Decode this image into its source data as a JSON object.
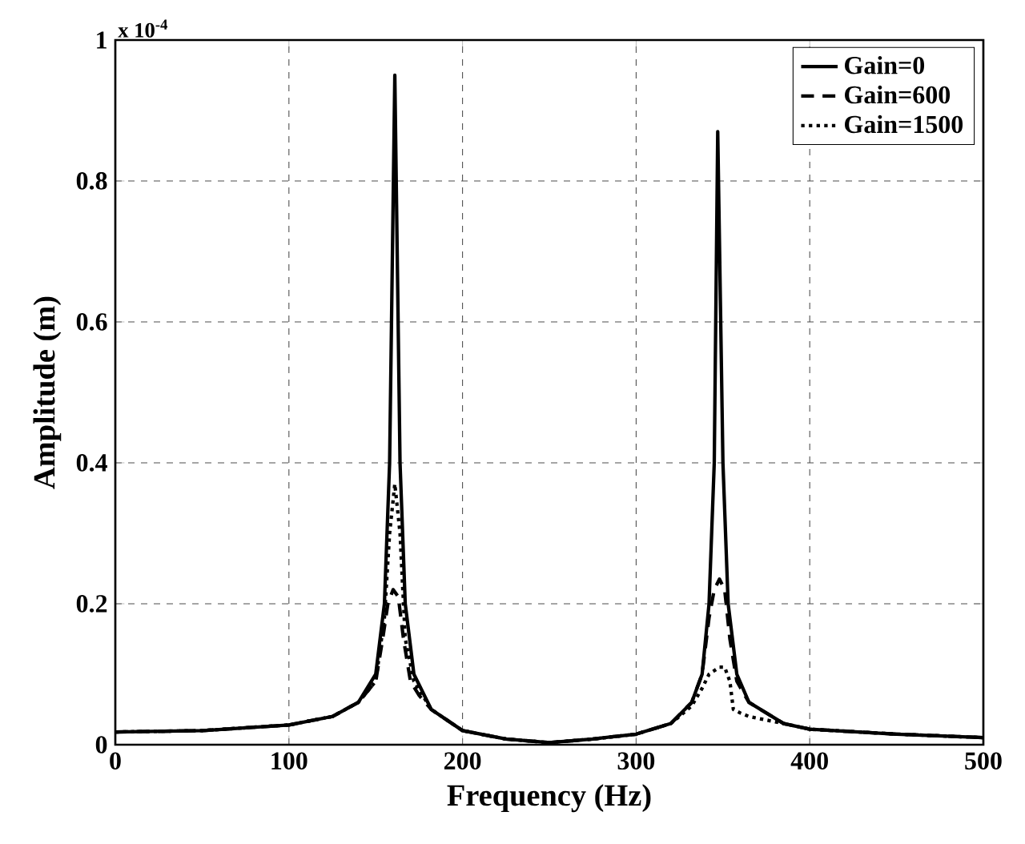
{
  "chart_data": {
    "type": "line",
    "xlabel": "Frequency (Hz)",
    "ylabel": "Amplitude (m)",
    "annotations": [
      "x 10$^{-4}$"
    ],
    "xlim": [
      0,
      500
    ],
    "ylim": [
      0,
      1
    ],
    "xticks": [
      0,
      100,
      200,
      300,
      400,
      500
    ],
    "yticks": [
      0,
      0.2,
      0.4,
      0.6,
      0.8,
      1
    ],
    "grid": true,
    "legend": "top right",
    "marker": "none",
    "series": [
      {
        "name": "Gain=0",
        "color": "#000000",
        "line_style": "solid",
        "x": [
          0,
          50,
          100,
          125,
          140,
          150,
          155,
          158,
          161,
          164,
          167,
          172,
          182,
          200,
          225,
          250,
          275,
          300,
          320,
          332,
          338,
          342,
          345,
          347,
          350,
          353,
          358,
          365,
          385,
          400,
          450,
          500
        ],
        "values": [
          0.018,
          0.02,
          0.028,
          0.04,
          0.06,
          0.1,
          0.2,
          0.4,
          0.95,
          0.4,
          0.2,
          0.1,
          0.05,
          0.02,
          0.008,
          0.003,
          0.008,
          0.015,
          0.03,
          0.06,
          0.1,
          0.2,
          0.4,
          0.87,
          0.4,
          0.2,
          0.1,
          0.06,
          0.03,
          0.022,
          0.015,
          0.01
        ]
      },
      {
        "name": "Gain=600",
        "color": "#000000",
        "line_style": "dashed",
        "x": [
          0,
          50,
          100,
          125,
          140,
          150,
          154,
          157,
          160,
          163,
          166,
          170,
          175,
          182,
          200,
          225,
          250,
          275,
          300,
          320,
          332,
          338,
          342,
          345,
          348,
          351,
          354,
          358,
          365,
          385,
          400,
          450,
          500
        ],
        "values": [
          0.018,
          0.02,
          0.028,
          0.04,
          0.06,
          0.09,
          0.15,
          0.2,
          0.22,
          0.21,
          0.15,
          0.09,
          0.07,
          0.05,
          0.02,
          0.008,
          0.003,
          0.008,
          0.015,
          0.03,
          0.06,
          0.1,
          0.18,
          0.22,
          0.235,
          0.22,
          0.15,
          0.09,
          0.06,
          0.03,
          0.022,
          0.015,
          0.01
        ]
      },
      {
        "name": "Gain=1500",
        "color": "#000000",
        "line_style": "dotted",
        "x": [
          0,
          50,
          100,
          125,
          140,
          150,
          155,
          158,
          161,
          164,
          167,
          172,
          182,
          200,
          225,
          250,
          275,
          300,
          320,
          332,
          338,
          342,
          345,
          348,
          351,
          354,
          356,
          360,
          365,
          385,
          400,
          450,
          500
        ],
        "values": [
          0.018,
          0.02,
          0.028,
          0.04,
          0.06,
          0.09,
          0.18,
          0.3,
          0.37,
          0.3,
          0.15,
          0.09,
          0.05,
          0.02,
          0.008,
          0.003,
          0.008,
          0.015,
          0.03,
          0.055,
          0.08,
          0.1,
          0.105,
          0.11,
          0.11,
          0.09,
          0.05,
          0.045,
          0.04,
          0.03,
          0.022,
          0.015,
          0.01
        ]
      }
    ]
  }
}
